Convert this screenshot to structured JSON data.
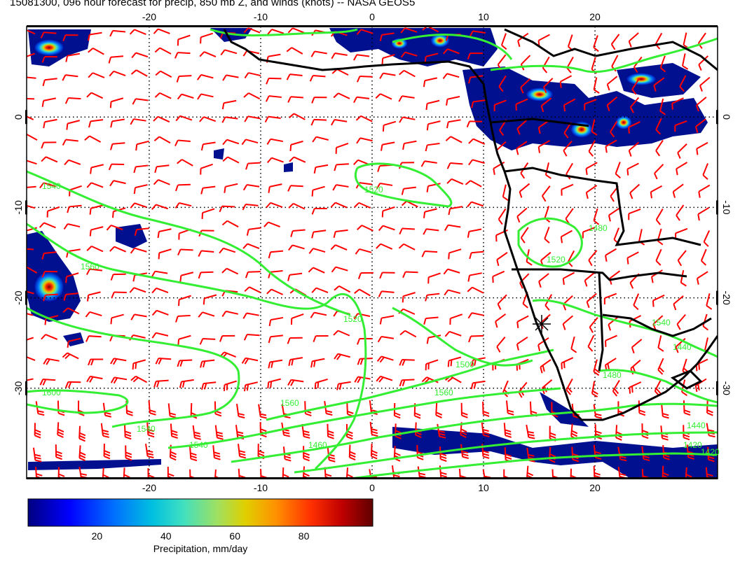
{
  "title": "15081300, 096 hour forecast for precip, 850 mb Z, and winds (knots) -- NASA GEOS5",
  "map": {
    "lon_range": [
      -31,
      31
    ],
    "lat_range": [
      -40,
      10
    ],
    "lon_ticks": [
      -20,
      -10,
      0,
      10,
      20
    ],
    "lat_ticks": [
      0,
      -10,
      -20,
      -30
    ],
    "grid": "dotted"
  },
  "lon_tick_labels": [
    "-20",
    "-10",
    "0",
    "10",
    "20"
  ],
  "lat_tick_labels": [
    "0",
    "-10",
    "-20",
    "-30"
  ],
  "contours": {
    "color": "#33ee33",
    "labels": [
      "1540",
      "1520",
      "1560",
      "1560",
      "1600",
      "1540",
      "1520",
      "1500",
      "1480",
      "1460",
      "1440",
      "1420",
      "1540",
      "1520",
      "1480",
      "1440",
      "1420",
      "1540",
      "1560"
    ]
  },
  "colorbar": {
    "label": "Precipitation, mm/day",
    "tick_labels": [
      "20",
      "40",
      "60",
      "80"
    ],
    "ticks": [
      20,
      40,
      60,
      80
    ],
    "range": [
      0,
      100
    ],
    "colors": [
      "#000080",
      "#0000ff",
      "#0070ff",
      "#00c0e0",
      "#40e0c0",
      "#a0e060",
      "#e0d000",
      "#ff9000",
      "#ff3000",
      "#c00000",
      "#600000"
    ]
  },
  "wind_barb_color": "#ff0000"
}
